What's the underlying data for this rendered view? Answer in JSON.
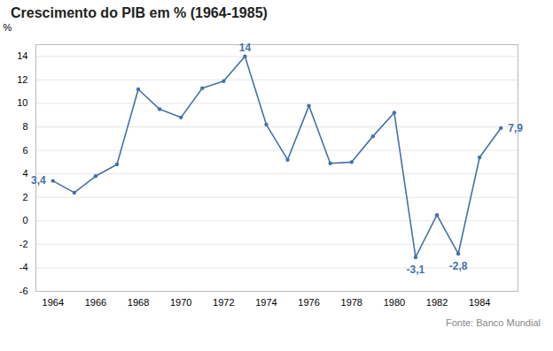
{
  "chart_data": {
    "type": "line",
    "title": "Crescimento do PIB em % (1964-1985)",
    "ylabel": "%",
    "source": "Fonte: Banco Mundial",
    "x": [
      1964,
      1965,
      1966,
      1967,
      1968,
      1969,
      1970,
      1971,
      1972,
      1973,
      1974,
      1975,
      1976,
      1977,
      1978,
      1979,
      1980,
      1981,
      1982,
      1983,
      1984,
      1985
    ],
    "values": [
      3.4,
      2.4,
      3.8,
      4.8,
      11.2,
      9.5,
      8.8,
      11.3,
      11.9,
      14.0,
      8.2,
      5.2,
      9.8,
      4.9,
      5.0,
      7.2,
      9.2,
      -3.1,
      0.5,
      -2.8,
      5.4,
      7.9
    ],
    "color": "#4472a8",
    "marker": "circle",
    "grid": true,
    "annotations": [
      {
        "x": 1964,
        "y": 3.4,
        "label": "3,4"
      },
      {
        "x": 1973,
        "y": 14.0,
        "label": "14"
      },
      {
        "x": 1981,
        "y": -3.1,
        "label": "-3,1"
      },
      {
        "x": 1983,
        "y": -2.8,
        "label": "-2,8"
      },
      {
        "x": 1985,
        "y": 7.9,
        "label": "7,9"
      }
    ],
    "ylim": [
      -6,
      15
    ],
    "yticks": [
      -6,
      -4,
      -2,
      0,
      2,
      4,
      6,
      8,
      10,
      12,
      14
    ],
    "xlim": [
      1963.2,
      1985.8
    ],
    "xticks": [
      1964,
      1966,
      1968,
      1970,
      1972,
      1974,
      1976,
      1978,
      1980,
      1982,
      1984
    ]
  }
}
